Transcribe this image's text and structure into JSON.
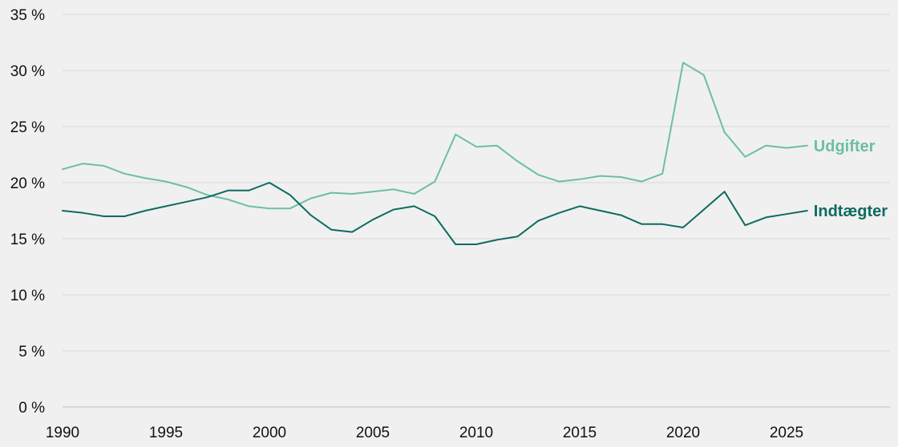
{
  "chart_data": {
    "type": "line",
    "title": "",
    "xlabel": "",
    "ylabel": "",
    "x": [
      1990,
      1991,
      1992,
      1993,
      1994,
      1995,
      1996,
      1997,
      1998,
      1999,
      2000,
      2001,
      2002,
      2003,
      2004,
      2005,
      2006,
      2007,
      2008,
      2009,
      2010,
      2011,
      2012,
      2013,
      2014,
      2015,
      2016,
      2017,
      2018,
      2019,
      2020,
      2021,
      2022,
      2023,
      2024,
      2025,
      2026
    ],
    "xlim": [
      1990,
      2030
    ],
    "ylim": [
      0,
      35
    ],
    "x_ticks": [
      {
        "value": 1990,
        "label": "1990"
      },
      {
        "value": 1995,
        "label": "1995"
      },
      {
        "value": 2000,
        "label": "2000"
      },
      {
        "value": 2005,
        "label": "2005"
      },
      {
        "value": 2010,
        "label": "2010"
      },
      {
        "value": 2015,
        "label": "2015"
      },
      {
        "value": 2020,
        "label": "2020"
      },
      {
        "value": 2025,
        "label": "2025"
      }
    ],
    "y_ticks": [
      {
        "value": 0,
        "label": "0 %"
      },
      {
        "value": 5,
        "label": "5 %"
      },
      {
        "value": 10,
        "label": "10 %"
      },
      {
        "value": 15,
        "label": "15 %"
      },
      {
        "value": 20,
        "label": "20 %"
      },
      {
        "value": 25,
        "label": "25 %"
      },
      {
        "value": 30,
        "label": "30 %"
      },
      {
        "value": 35,
        "label": "35 %"
      }
    ],
    "grid": "horizontal",
    "legend": "direct labels at line ends",
    "series": [
      {
        "name": "Udgifter",
        "color": "#6cbfa0",
        "values": [
          21.2,
          21.7,
          21.5,
          20.8,
          20.4,
          20.1,
          19.6,
          18.9,
          18.5,
          17.9,
          17.7,
          17.7,
          18.6,
          19.1,
          19.0,
          19.2,
          19.4,
          19.0,
          20.1,
          24.3,
          23.2,
          23.3,
          21.9,
          20.7,
          20.1,
          20.3,
          20.6,
          20.5,
          20.1,
          20.8,
          30.7,
          29.6,
          24.5,
          22.3,
          23.3,
          23.1,
          23.3
        ]
      },
      {
        "name": "Indtægter",
        "color": "#0e6b60",
        "values": [
          17.5,
          17.3,
          17.0,
          17.0,
          17.5,
          17.9,
          18.3,
          18.7,
          19.3,
          19.3,
          20.0,
          18.9,
          17.1,
          15.8,
          15.6,
          16.7,
          17.6,
          17.9,
          17.0,
          14.5,
          14.5,
          14.9,
          15.2,
          16.6,
          17.3,
          17.9,
          17.5,
          17.1,
          16.3,
          16.3,
          16.0,
          17.6,
          19.2,
          16.2,
          16.9,
          17.2,
          17.5
        ]
      }
    ]
  }
}
